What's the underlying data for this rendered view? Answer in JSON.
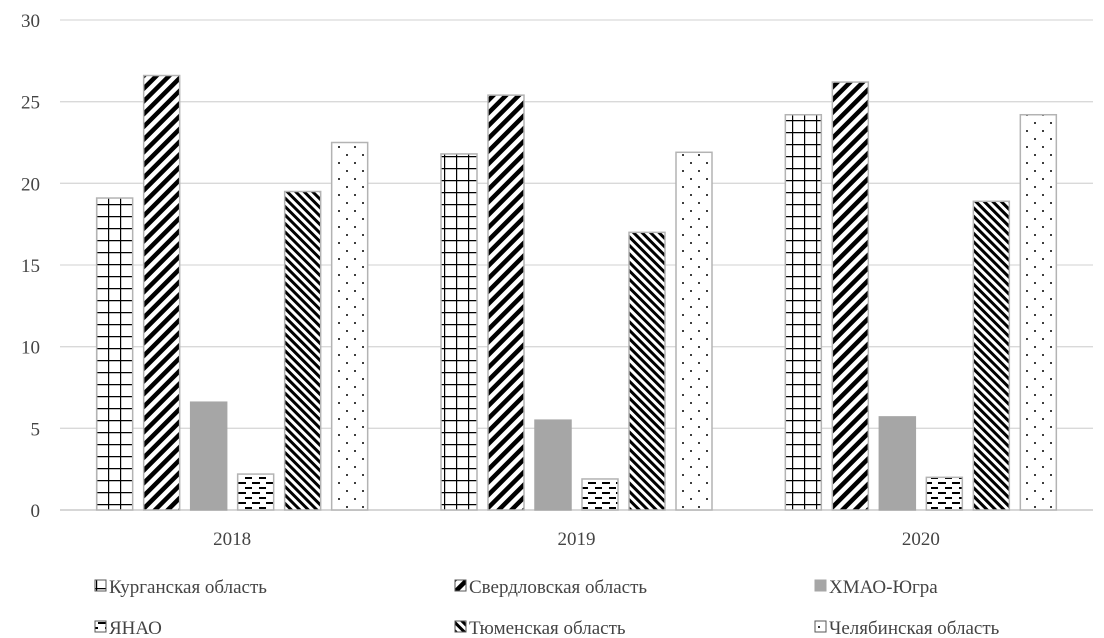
{
  "chart_data": {
    "type": "bar",
    "categories": [
      "2018",
      "2019",
      "2020"
    ],
    "ylim": [
      0,
      30
    ],
    "yticks": [
      0,
      5,
      10,
      15,
      20,
      25,
      30
    ],
    "grid": true,
    "legend_position": "bottom",
    "series": [
      {
        "name": "Курганская область",
        "values": [
          19.1,
          21.8,
          24.2
        ],
        "pattern": "grid"
      },
      {
        "name": "Свердловская область",
        "values": [
          26.6,
          25.4,
          26.2
        ],
        "pattern": "wide-diagonal-up"
      },
      {
        "name": "ХМАО-Югра",
        "values": [
          6.6,
          5.5,
          5.7
        ],
        "pattern": "solid-gray"
      },
      {
        "name": "ЯНАО",
        "values": [
          2.2,
          1.9,
          2.0
        ],
        "pattern": "dashed-horizontal"
      },
      {
        "name": "Тюменская область",
        "values": [
          19.5,
          17.0,
          18.9
        ],
        "pattern": "wide-diagonal-down"
      },
      {
        "name": "Челябинская область",
        "values": [
          22.5,
          21.9,
          24.2
        ],
        "pattern": "dotted"
      }
    ]
  }
}
